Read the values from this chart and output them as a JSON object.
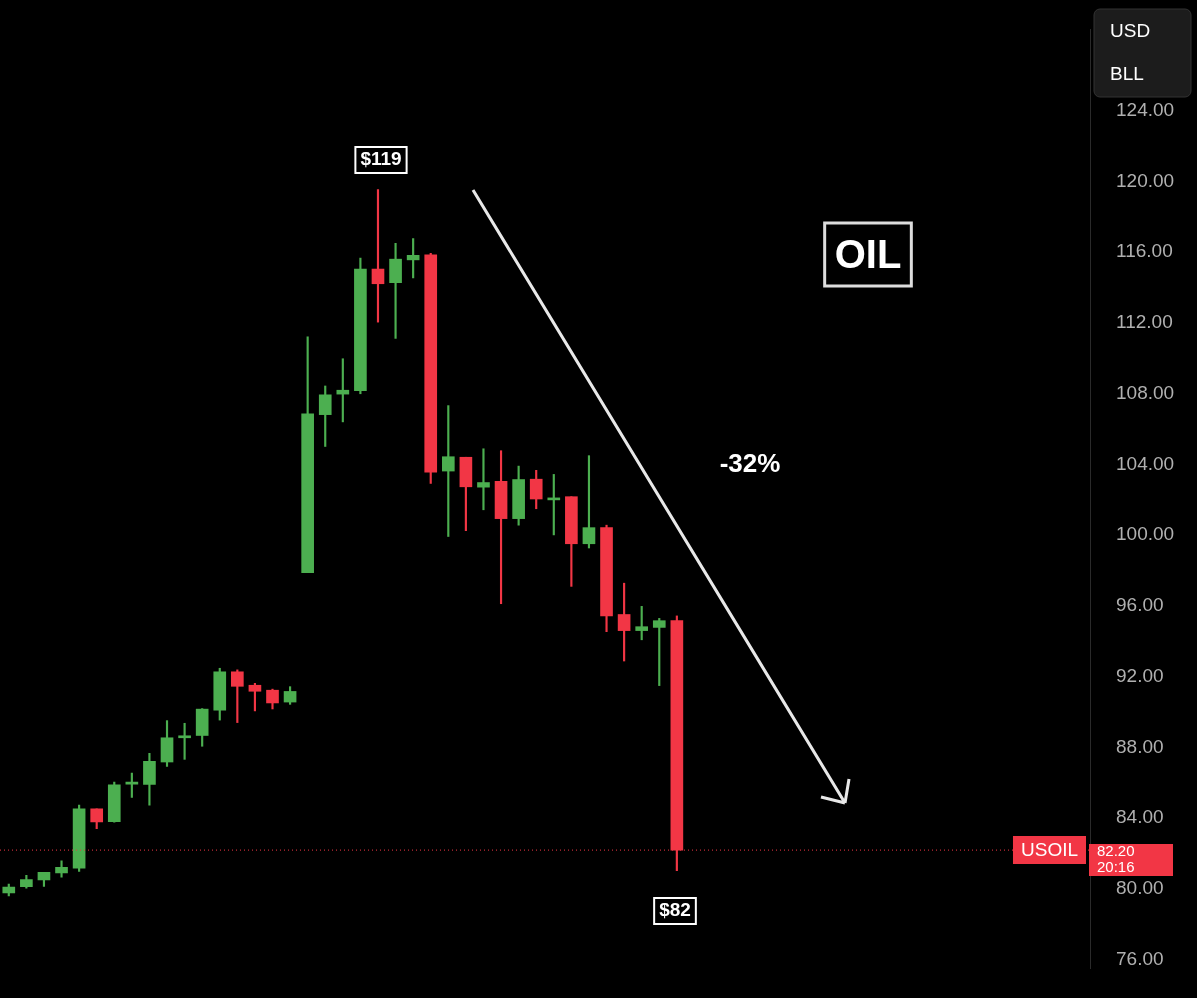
{
  "chart_data": {
    "type": "candlestick",
    "title": "OIL",
    "categories": [
      null,
      null,
      null,
      null,
      null,
      null,
      null,
      null,
      null,
      null,
      null,
      null,
      null,
      null,
      null,
      null,
      null,
      null,
      null,
      null,
      null,
      null,
      null,
      null,
      null,
      null,
      null,
      null,
      null,
      null,
      null,
      null,
      null,
      null,
      null,
      null,
      null,
      null,
      null,
      null,
      null,
      null,
      null,
      null,
      null,
      null,
      null,
      null,
      null,
      null,
      null,
      null,
      null,
      null,
      null,
      null,
      null,
      null,
      null,
      null,
      null,
      null
    ],
    "ohlc": [
      [
        79.78,
        80.28,
        79.61,
        80.11
      ],
      [
        80.13,
        80.78,
        80.05,
        80.54
      ],
      [
        80.52,
        80.94,
        80.15,
        80.94
      ],
      [
        80.91,
        81.59,
        80.67,
        81.22
      ],
      [
        81.18,
        84.74,
        81.0,
        84.54
      ],
      [
        84.54,
        84.54,
        83.41,
        83.79
      ],
      [
        83.81,
        86.04,
        83.78,
        85.89
      ],
      [
        85.93,
        86.55,
        85.18,
        86.0
      ],
      [
        85.91,
        87.67,
        84.74,
        87.22
      ],
      [
        87.18,
        89.52,
        86.93,
        88.55
      ],
      [
        88.55,
        89.37,
        87.33,
        88.65
      ],
      [
        88.68,
        90.2,
        88.07,
        90.17
      ],
      [
        90.11,
        92.48,
        89.55,
        92.28
      ],
      [
        92.28,
        92.39,
        89.41,
        91.46
      ],
      [
        91.52,
        91.63,
        90.07,
        91.18
      ],
      [
        91.24,
        91.3,
        90.18,
        90.52
      ],
      [
        90.57,
        91.44,
        90.44,
        91.17
      ],
      [
        97.89,
        111.22,
        97.89,
        106.87
      ],
      [
        106.82,
        108.44,
        105.02,
        107.94
      ],
      [
        107.98,
        109.98,
        106.41,
        108.2
      ],
      [
        108.17,
        115.67,
        108.0,
        115.05
      ],
      [
        115.05,
        119.55,
        112.05,
        114.22
      ],
      [
        114.28,
        116.5,
        111.13,
        115.61
      ],
      [
        115.57,
        116.78,
        114.55,
        115.83
      ],
      [
        115.85,
        115.94,
        102.93,
        103.57
      ],
      [
        103.63,
        107.33,
        99.93,
        104.44
      ],
      [
        104.41,
        104.41,
        100.26,
        102.74
      ],
      [
        102.72,
        104.89,
        101.44,
        102.98
      ],
      [
        103.05,
        104.78,
        96.13,
        100.94
      ],
      [
        100.94,
        103.91,
        100.57,
        103.15
      ],
      [
        103.17,
        103.67,
        101.5,
        102.05
      ],
      [
        102.0,
        103.44,
        100.02,
        102.1
      ],
      [
        102.18,
        102.18,
        97.11,
        99.52
      ],
      [
        99.52,
        104.5,
        99.28,
        100.43
      ],
      [
        100.44,
        100.57,
        94.55,
        95.44
      ],
      [
        95.52,
        97.29,
        92.89,
        94.61
      ],
      [
        94.61,
        95.98,
        94.09,
        94.83
      ],
      [
        94.79,
        95.3,
        91.5,
        95.17
      ],
      [
        95.17,
        95.44,
        81.04,
        82.2
      ],
      null,
      null,
      null,
      null,
      null,
      null,
      null,
      null,
      null,
      null,
      null,
      null,
      null,
      null,
      null,
      null,
      null,
      null,
      null,
      null,
      null,
      null,
      null
    ],
    "colors": [
      "#4caf50",
      "#4caf50",
      "#4caf50",
      "#4caf50",
      "#4caf50",
      "#f23645",
      "#4caf50",
      "#4caf50",
      "#4caf50",
      "#4caf50",
      "#4caf50",
      "#4caf50",
      "#4caf50",
      "#f23645",
      "#f23645",
      "#f23645",
      "#4caf50",
      "#4caf50",
      "#4caf50",
      "#4caf50",
      "#4caf50",
      "#f23645",
      "#4caf50",
      "#4caf50",
      "#f23645",
      "#4caf50",
      "#f23645",
      "#4caf50",
      "#f23645",
      "#4caf50",
      "#f23645",
      "#4caf50",
      "#f23645",
      "#4caf50",
      "#f23645",
      "#f23645",
      "#4caf50",
      "#4caf50",
      "#f23645",
      null,
      null,
      null,
      null,
      null,
      null,
      null,
      null,
      null,
      null,
      null,
      null,
      null,
      null,
      null,
      null,
      null,
      null,
      null,
      null,
      null,
      null,
      null
    ],
    "ylim": [
      75.5,
      128.6
    ],
    "yticks": [
      {
        "value": 76,
        "label": "76.00"
      },
      {
        "value": 80,
        "label": "80.00"
      },
      {
        "value": 84,
        "label": "84.00"
      },
      {
        "value": 88,
        "label": "88.00"
      },
      {
        "value": 92,
        "label": "92.00"
      },
      {
        "value": 96,
        "label": "96.00"
      },
      {
        "value": 100,
        "label": "100.00"
      },
      {
        "value": 104,
        "label": "104.00"
      },
      {
        "value": 108,
        "label": "108.00"
      },
      {
        "value": 112,
        "label": "112.00"
      },
      {
        "value": 116,
        "label": "116.00"
      },
      {
        "value": 120,
        "label": "120.00"
      },
      {
        "value": 124,
        "label": "124.00"
      }
    ],
    "grid": false,
    "legend": false,
    "tick_labels": "y",
    "ref_lines": [
      {
        "axis": "y",
        "value": 82.2,
        "label": "USOIL",
        "color": "#f23645",
        "line_style": "dotted"
      }
    ],
    "annotations": [
      "$119",
      "$82",
      "-32%",
      "82.20",
      "20:16",
      "USD",
      "BLL"
    ]
  }
}
